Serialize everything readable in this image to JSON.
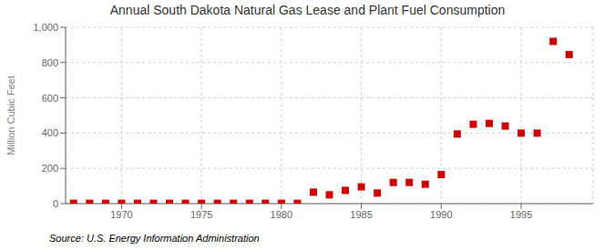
{
  "chart_data": {
    "type": "scatter",
    "title": "Annual South Dakota Natural Gas Lease and Plant Fuel Consumption",
    "y_label": "Million Cubic Feet",
    "annotation": "Source: U.S. Energy Information Administration",
    "x": [
      1967,
      1968,
      1969,
      1970,
      1971,
      1972,
      1973,
      1974,
      1975,
      1976,
      1977,
      1978,
      1979,
      1980,
      1981,
      1982,
      1983,
      1984,
      1985,
      1986,
      1987,
      1988,
      1989,
      1990,
      1991,
      1992,
      1993,
      1994,
      1995,
      1996,
      1997,
      1998
    ],
    "values": [
      2,
      2,
      2,
      2,
      2,
      2,
      2,
      2,
      2,
      2,
      2,
      2,
      2,
      2,
      2,
      65,
      50,
      75,
      95,
      60,
      120,
      120,
      110,
      165,
      395,
      450,
      455,
      440,
      400,
      400,
      920,
      845
    ],
    "color": "#cc0000",
    "marker": "square",
    "xlim": [
      1966.5,
      1999.5
    ],
    "xticks": [
      1970,
      1975,
      1980,
      1985,
      1990,
      1995
    ],
    "ylim": [
      0,
      1000
    ],
    "yticks": [
      0,
      200,
      400,
      600,
      800,
      {
        "value": 1000,
        "label": "1,000"
      }
    ],
    "grid": true
  }
}
